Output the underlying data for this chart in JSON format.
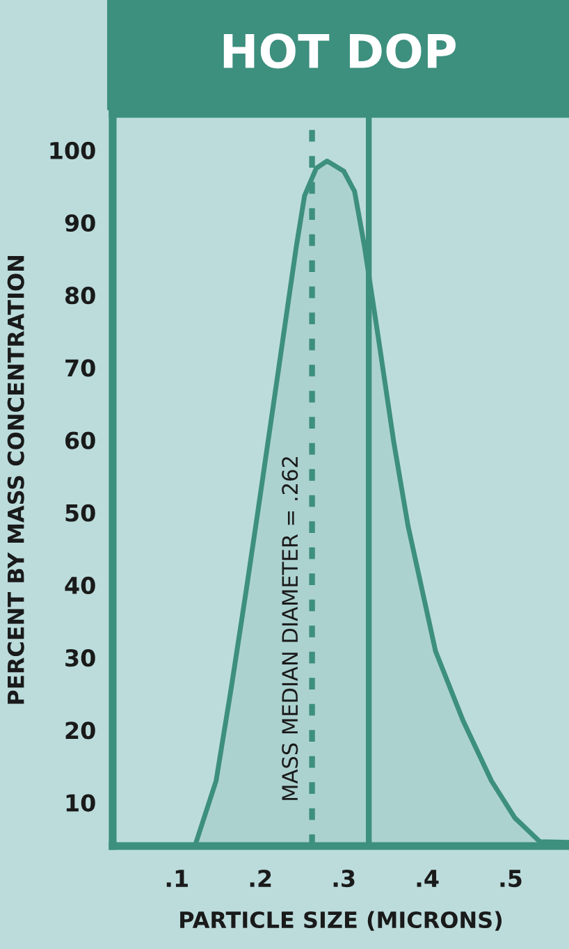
{
  "chart_data": {
    "type": "area",
    "title": "HOT DOP",
    "xlabel": "PARTICLE SIZE (MICRONS)",
    "ylabel": "PERCENT BY MASS CONCENTRATION",
    "series": [
      {
        "color": "#3d8f7e",
        "x": [
          0.123,
          0.147,
          0.165,
          0.183,
          0.197,
          0.222,
          0.243,
          0.253,
          0.267,
          0.28,
          0.3,
          0.313,
          0.325,
          0.342,
          0.36,
          0.377,
          0.41,
          0.443,
          0.477,
          0.505,
          0.535,
          0.57
        ],
        "values": [
          4.5,
          13,
          25.7,
          39.2,
          50.1,
          69.9,
          86.6,
          93.7,
          97.5,
          98.5,
          97.1,
          94.3,
          86.6,
          73.7,
          59.7,
          48.2,
          30.9,
          21.3,
          13,
          7.9,
          4.6,
          4.5
        ]
      }
    ],
    "xlim": [
      0.023,
      0.57
    ],
    "ylim": [
      4,
      105
    ],
    "xticks": [
      {
        "value": 0.1,
        "label": ".1"
      },
      {
        "value": 0.2,
        "label": ".2"
      },
      {
        "value": 0.3,
        "label": ".3"
      },
      {
        "value": 0.4,
        "label": ".4"
      },
      {
        "value": 0.5,
        "label": ".5"
      }
    ],
    "yticks": [
      10,
      20,
      30,
      40,
      50,
      60,
      70,
      80,
      90,
      100
    ],
    "ref_lines": [
      {
        "axis": "x",
        "value": 0.262,
        "label": "MASS MEDIAN DIAMETER = .262",
        "color": "#3d8f7e",
        "line_style": "dashed"
      },
      {
        "axis": "x",
        "value": 0.33,
        "color": "#3d8f7e",
        "line_style": "solid"
      }
    ],
    "grid": false,
    "legend": false
  }
}
